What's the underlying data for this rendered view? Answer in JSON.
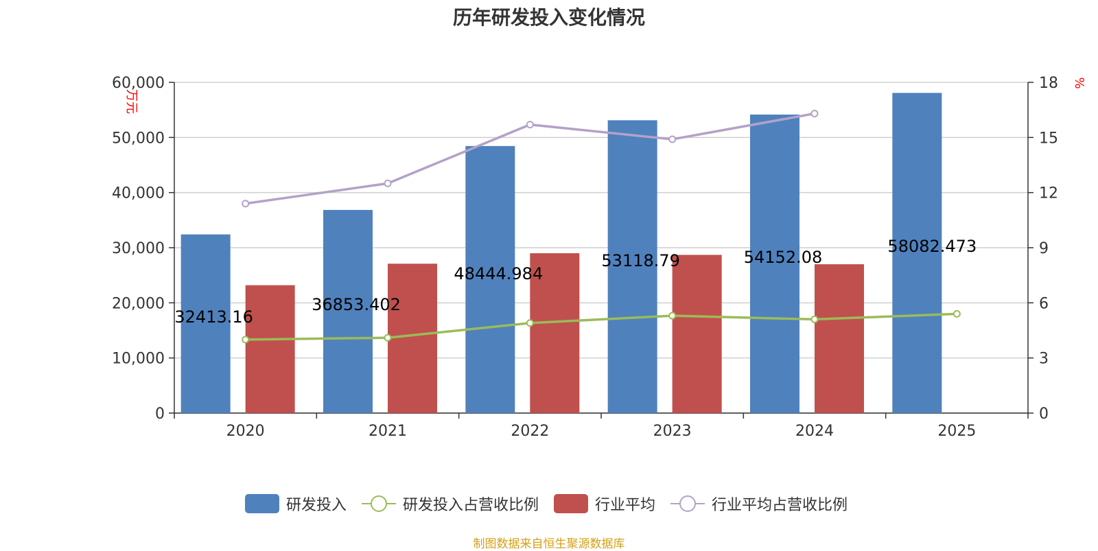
{
  "chart_data": {
    "type": "bar",
    "title": "历年研发投入变化情况",
    "categories": [
      "2020",
      "2021",
      "2022",
      "2023",
      "2024",
      "2025"
    ],
    "y_left": {
      "label": "万元",
      "min": 0,
      "max": 60000,
      "interval": 10000,
      "ticks": [
        "0",
        "10,000",
        "20,000",
        "30,000",
        "40,000",
        "50,000",
        "60,000"
      ]
    },
    "y_right": {
      "label": "%",
      "min": 0,
      "max": 18,
      "interval": 3,
      "ticks": [
        "0",
        "3",
        "6",
        "9",
        "12",
        "15",
        "18"
      ]
    },
    "series": [
      {
        "name": "研发投入",
        "kind": "bar",
        "axis": "left",
        "color": "#4f81bd",
        "values": [
          32413.16,
          36853.402,
          48444.984,
          53118.79,
          54152.08,
          58082.473
        ],
        "labels": [
          "32413.16",
          "36853.402",
          "48444.984",
          "53118.79",
          "54152.08",
          "58082.473"
        ]
      },
      {
        "name": "研发投入占营收比例",
        "kind": "line",
        "axis": "right",
        "color": "#9bbb59",
        "values": [
          4.0,
          4.1,
          4.9,
          5.3,
          5.1,
          5.4
        ]
      },
      {
        "name": "行业平均",
        "kind": "bar",
        "axis": "left",
        "color": "#c0504d",
        "values": [
          23200,
          27100,
          29000,
          28700,
          27000,
          null
        ]
      },
      {
        "name": "行业平均占营收比例",
        "kind": "line",
        "axis": "right",
        "color": "#b3a2c7",
        "values": [
          11.4,
          12.5,
          15.7,
          14.9,
          16.3,
          null
        ]
      }
    ],
    "grid": true,
    "legend_position": "bottom"
  },
  "source_note": "制图数据来自恒生聚源数据库"
}
